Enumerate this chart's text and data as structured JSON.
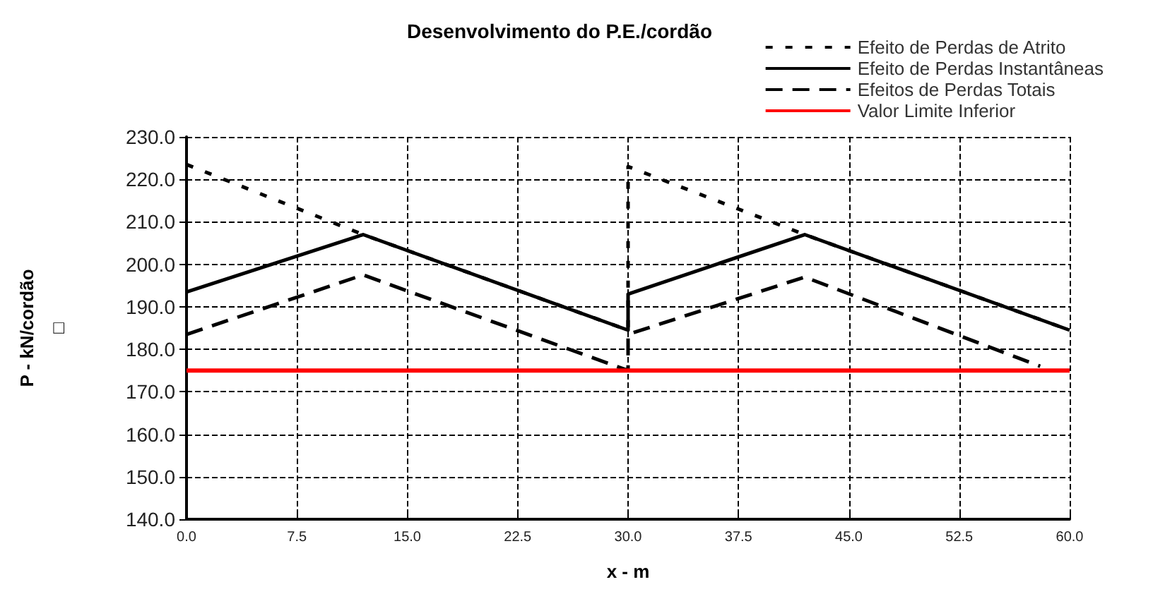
{
  "chart_data": {
    "type": "line",
    "title": "Desenvolvimento do P.E./cordão",
    "xlabel": "x - m",
    "ylabel": "P - kN/cordão\n□",
    "series": [
      {
        "name": "Efeito de Perdas de Atrito",
        "color": "#000000",
        "line_style": "dotted",
        "x": [
          0,
          12,
          30,
          30,
          42,
          60
        ],
        "values": [
          223.5,
          207,
          184.5,
          223,
          207,
          184.5
        ]
      },
      {
        "name": "Efeito de Perdas Instantâneas",
        "color": "#000000",
        "line_style": "solid",
        "x": [
          0,
          12,
          30,
          30,
          42,
          60
        ],
        "values": [
          193.5,
          207,
          184.5,
          193,
          207,
          184.5
        ]
      },
      {
        "name": "Efeitos de Perdas Totais",
        "color": "#000000",
        "line_style": "dashed",
        "x": [
          0,
          12,
          30,
          30,
          42,
          58
        ],
        "values": [
          183.5,
          197.5,
          175,
          183.5,
          197,
          176
        ]
      },
      {
        "name": "Valor Limite Inferior",
        "color": "#ff0000",
        "line_style": "solid",
        "x": [
          0,
          60
        ],
        "values": [
          175,
          175
        ]
      }
    ],
    "xlim": [
      0,
      60
    ],
    "xticks": [
      {
        "value": 0,
        "label": "0.0"
      },
      7.5,
      {
        "value": 15,
        "label": "15.0"
      },
      22.5,
      {
        "value": 30,
        "label": "30.0"
      },
      37.5,
      {
        "value": 45,
        "label": "45.0"
      },
      52.5,
      {
        "value": 60,
        "label": "60.0"
      }
    ],
    "ylim": [
      140,
      230
    ],
    "yticks": [
      {
        "value": 140,
        "label": "140.0"
      },
      {
        "value": 150,
        "label": "150.0"
      },
      {
        "value": 160,
        "label": "160.0"
      },
      {
        "value": 170,
        "label": "170.0"
      },
      {
        "value": 180,
        "label": "180.0"
      },
      {
        "value": 190,
        "label": "190.0"
      },
      {
        "value": 200,
        "label": "200.0"
      },
      {
        "value": 210,
        "label": "210.0"
      },
      {
        "value": 220,
        "label": "220.0"
      },
      {
        "value": 230,
        "label": "230.0"
      }
    ],
    "grid": true,
    "legend": "top right",
    "marker": "none"
  }
}
